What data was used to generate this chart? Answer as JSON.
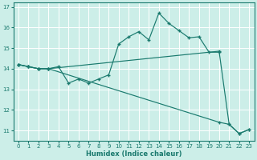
{
  "xlabel": "Humidex (Indice chaleur)",
  "bg_color": "#cceee8",
  "line_color": "#1a7a6e",
  "grid_color": "#ffffff",
  "xlim": [
    -0.5,
    23.5
  ],
  "ylim": [
    10.5,
    17.2
  ],
  "xticks": [
    0,
    1,
    2,
    3,
    4,
    5,
    6,
    7,
    8,
    9,
    10,
    11,
    12,
    13,
    14,
    15,
    16,
    17,
    18,
    19,
    20,
    21,
    22,
    23
  ],
  "yticks": [
    11,
    12,
    13,
    14,
    15,
    16,
    17
  ],
  "line1_x": [
    0,
    1,
    2,
    3,
    4,
    5,
    6,
    7,
    8,
    9,
    10,
    11,
    12,
    13,
    14,
    15,
    16,
    17,
    18,
    19,
    20
  ],
  "line1_y": [
    14.2,
    14.1,
    14.0,
    14.0,
    14.1,
    13.3,
    13.5,
    13.3,
    13.5,
    13.7,
    15.2,
    15.55,
    15.8,
    15.4,
    16.7,
    16.2,
    15.85,
    15.5,
    15.55,
    14.8,
    14.8
  ],
  "line2_x": [
    0,
    1,
    2,
    3,
    20,
    21,
    22,
    23
  ],
  "line2_y": [
    14.2,
    14.1,
    14.0,
    14.0,
    14.85,
    11.3,
    10.85,
    11.05
  ],
  "line3_x": [
    0,
    1,
    2,
    3,
    20,
    21,
    22,
    23
  ],
  "line3_y": [
    14.2,
    14.1,
    14.0,
    14.0,
    11.4,
    11.3,
    10.85,
    11.05
  ]
}
